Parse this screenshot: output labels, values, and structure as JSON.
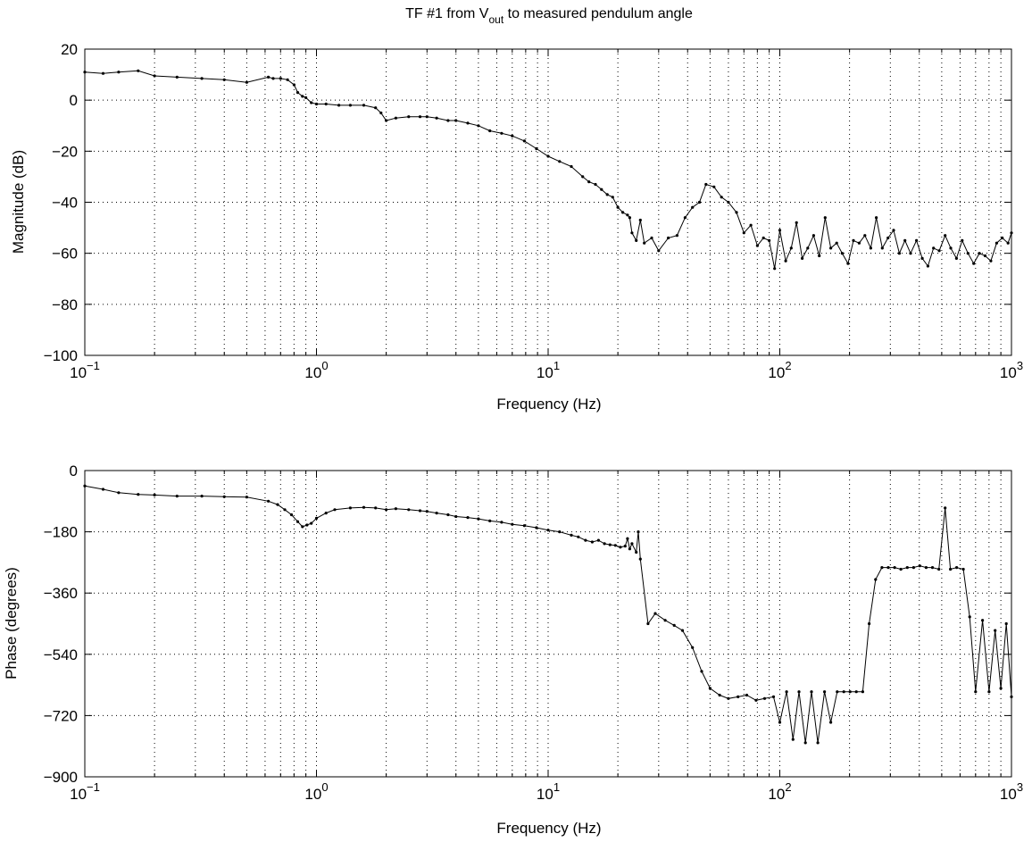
{
  "chart_data": [
    {
      "type": "line",
      "title": "TF #1 from V_out to measured pendulum angle",
      "title_parts": {
        "main": "TF #1 from V",
        "subscript": "out",
        "rest": " to measured pendulum angle"
      },
      "xlabel": "Frequency (Hz)",
      "ylabel": "Magnitude (dB)",
      "xscale": "log",
      "xlim": [
        0.1,
        1000
      ],
      "ylim": [
        -100,
        20
      ],
      "xticks": [
        0.1,
        1,
        10,
        100,
        1000
      ],
      "xtick_labels": [
        {
          "base": "10",
          "exp": "−1"
        },
        {
          "base": "10",
          "exp": "0"
        },
        {
          "base": "10",
          "exp": "1"
        },
        {
          "base": "10",
          "exp": "2"
        },
        {
          "base": "10",
          "exp": "3"
        }
      ],
      "yticks": [
        -100,
        -80,
        -60,
        -40,
        -20,
        0,
        20
      ],
      "ytick_labels": [
        "−100",
        "−80",
        "−60",
        "−40",
        "−20",
        "0",
        "20"
      ],
      "grid": true,
      "series": [
        {
          "marker": "dot",
          "x": [
            0.1,
            0.12,
            0.14,
            0.17,
            0.2,
            0.25,
            0.32,
            0.4,
            0.5,
            0.62,
            0.65,
            0.7,
            0.75,
            0.8,
            0.83,
            0.87,
            0.9,
            0.95,
            1.0,
            1.1,
            1.25,
            1.4,
            1.6,
            1.8,
            1.9,
            2.0,
            2.2,
            2.5,
            2.8,
            3.0,
            3.3,
            3.7,
            4.0,
            4.5,
            5.0,
            5.6,
            6.3,
            7.0,
            7.9,
            8.9,
            10.0,
            11.2,
            12.6,
            14.1,
            15.0,
            16.0,
            17.0,
            18.0,
            19.0,
            20.0,
            21.0,
            22.0,
            22.5,
            23.0,
            24.0,
            25.0,
            26.0,
            28.0,
            30.0,
            33.0,
            36.0,
            39.0,
            42.0,
            45.0,
            48.0,
            52.0,
            56.0,
            60.0,
            65.0,
            70.0,
            75.0,
            80.0,
            85.0,
            90.0,
            95.0,
            100.0,
            106.0,
            112.0,
            118.0,
            125.0,
            132.0,
            140.0,
            148.0,
            157.0,
            166.0,
            176.0,
            186.0,
            197.0,
            208.0,
            220.0,
            233.0,
            247.0,
            261.0,
            277.0,
            293.0,
            310.0,
            328.0,
            347.0,
            367.0,
            389.0,
            412.0,
            436.0,
            461.0,
            488.0,
            517.0,
            547.0,
            579.0,
            613.0,
            649.0,
            687.0,
            727.0,
            770.0,
            815.0,
            863.0,
            913.0,
            967.0,
            1000.0
          ],
          "y": [
            11,
            10.5,
            11,
            11.5,
            9.5,
            9,
            8.5,
            8,
            7,
            9,
            8.5,
            8.5,
            8,
            6,
            3,
            1.5,
            1,
            -1,
            -1.5,
            -1.5,
            -2,
            -2,
            -2,
            -3,
            -5,
            -8,
            -7,
            -6.5,
            -6.5,
            -6.5,
            -7,
            -8,
            -8,
            -9,
            -10,
            -12,
            -13,
            -14,
            -16,
            -19,
            -22,
            -24,
            -26,
            -30,
            -32,
            -33,
            -35,
            -37,
            -38,
            -42,
            -44,
            -45,
            -46,
            -52,
            -55,
            -47,
            -56,
            -54,
            -59,
            -54,
            -53,
            -46,
            -42,
            -40,
            -33,
            -34,
            -38,
            -40,
            -44,
            -52,
            -49,
            -57,
            -54,
            -55,
            -66,
            -51,
            -63,
            -58,
            -48,
            -62,
            -58,
            -53,
            -61,
            -46,
            -58,
            -56,
            -60,
            -64,
            -55,
            -56,
            -53,
            -58,
            -46,
            -58,
            -54,
            -51,
            -60,
            -55,
            -60,
            -55,
            -62,
            -65,
            -58,
            -59,
            -53,
            -58,
            -62,
            -55,
            -60,
            -64,
            -60,
            -61,
            -63,
            -56,
            -54,
            -56,
            -52
          ]
        }
      ]
    },
    {
      "type": "line",
      "title": "",
      "xlabel": "Frequency (Hz)",
      "ylabel": "Phase (degrees)",
      "xscale": "log",
      "xlim": [
        0.1,
        1000
      ],
      "ylim": [
        -900,
        0
      ],
      "xticks": [
        0.1,
        1,
        10,
        100,
        1000
      ],
      "xtick_labels": [
        {
          "base": "10",
          "exp": "−1"
        },
        {
          "base": "10",
          "exp": "0"
        },
        {
          "base": "10",
          "exp": "1"
        },
        {
          "base": "10",
          "exp": "2"
        },
        {
          "base": "10",
          "exp": "3"
        }
      ],
      "yticks": [
        -900,
        -720,
        -540,
        -360,
        -180,
        0
      ],
      "ytick_labels": [
        "−900",
        "−720",
        "−540",
        "−360",
        "−180",
        "0"
      ],
      "grid": true,
      "series": [
        {
          "marker": "dot",
          "x": [
            0.1,
            0.12,
            0.14,
            0.17,
            0.2,
            0.25,
            0.32,
            0.4,
            0.5,
            0.62,
            0.68,
            0.73,
            0.78,
            0.83,
            0.87,
            0.91,
            0.95,
            1.0,
            1.1,
            1.2,
            1.4,
            1.6,
            1.8,
            2.0,
            2.2,
            2.5,
            2.8,
            3.0,
            3.3,
            3.7,
            4.0,
            4.5,
            5.0,
            5.6,
            6.3,
            7.0,
            7.9,
            8.9,
            10.0,
            11.2,
            12.6,
            13.5,
            14.5,
            15.5,
            16.5,
            17.5,
            18.5,
            19.5,
            20.5,
            21.5,
            22.0,
            22.5,
            23.0,
            24.0,
            24.5,
            25.0,
            27.0,
            29.0,
            32.0,
            35.0,
            38.0,
            42.0,
            46.0,
            50.0,
            55.0,
            60.0,
            66.0,
            72.0,
            79.0,
            86.0,
            94.0,
            100.0,
            107.0,
            114.0,
            121.0,
            129.0,
            137.0,
            146.0,
            156.0,
            166.0,
            177.0,
            189.0,
            201.0,
            214.0,
            228.0,
            243.0,
            259.0,
            276.0,
            294.0,
            313.0,
            333.0,
            355.0,
            378.0,
            402.0,
            428.0,
            456.0,
            486.0,
            517.0,
            545.0,
            580.0,
            620.0,
            660.0,
            700.0,
            750.0,
            800.0,
            850.0,
            900.0,
            950.0,
            1000.0
          ],
          "y": [
            -45,
            -55,
            -65,
            -70,
            -72,
            -75,
            -75,
            -77,
            -78,
            -90,
            -100,
            -115,
            -130,
            -150,
            -165,
            -160,
            -155,
            -140,
            -125,
            -115,
            -110,
            -108,
            -110,
            -115,
            -112,
            -115,
            -118,
            -120,
            -125,
            -130,
            -135,
            -138,
            -142,
            -148,
            -152,
            -158,
            -162,
            -168,
            -175,
            -180,
            -190,
            -195,
            -205,
            -210,
            -205,
            -215,
            -218,
            -220,
            -225,
            -222,
            -200,
            -230,
            -215,
            -240,
            -180,
            -260,
            -450,
            -420,
            -440,
            -455,
            -470,
            -520,
            -590,
            -640,
            -660,
            -670,
            -665,
            -660,
            -675,
            -670,
            -665,
            -740,
            -650,
            -790,
            -650,
            -800,
            -650,
            -800,
            -650,
            -740,
            -650,
            -650,
            -650,
            -650,
            -650,
            -450,
            -320,
            -285,
            -285,
            -285,
            -290,
            -285,
            -285,
            -280,
            -285,
            -285,
            -290,
            -110,
            -290,
            -285,
            -290,
            -430,
            -650,
            -440,
            -650,
            -470,
            -640,
            -450,
            -665
          ]
        }
      ]
    }
  ]
}
